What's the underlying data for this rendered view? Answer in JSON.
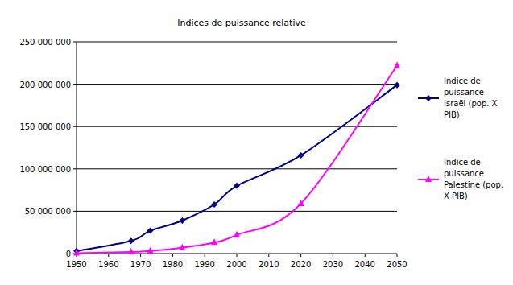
{
  "chart_data": {
    "type": "line",
    "title": "Indices de puissance relative",
    "x": [
      1950,
      1967,
      1973,
      1983,
      1993,
      2000,
      2020,
      2050
    ],
    "series": [
      {
        "name": "Indice de puissance Israël (pop. X PIB)",
        "color": "#000080",
        "marker": "diamond",
        "line_style": "solid",
        "values": [
          3000000,
          15000000,
          27000000,
          39000000,
          58000000,
          80000000,
          116000000,
          199000000
        ]
      },
      {
        "name": "Indice de puissance Palestine (pop. X PIB)",
        "color": "#ff00ff",
        "marker": "triangle",
        "line_style": "solid",
        "values": [
          500000,
          2000000,
          3000000,
          7000000,
          13000000,
          22000000,
          59000000,
          222000000
        ]
      }
    ],
    "xlim": [
      1950,
      2050
    ],
    "xticks": [
      1950,
      1960,
      1970,
      1980,
      1990,
      2000,
      2010,
      2020,
      2030,
      2040,
      2050
    ],
    "ylim": [
      0,
      250000000
    ],
    "yticks": [
      0,
      {
        "value": 50000000,
        "label": "50 000 000"
      },
      {
        "value": 100000000,
        "label": "100 000 000"
      },
      {
        "value": 150000000,
        "label": "150 000 000"
      },
      {
        "value": 200000000,
        "label": "200 000 000"
      },
      {
        "value": 250000000,
        "label": "250 000 000"
      }
    ],
    "grid": true,
    "legend": "right"
  }
}
